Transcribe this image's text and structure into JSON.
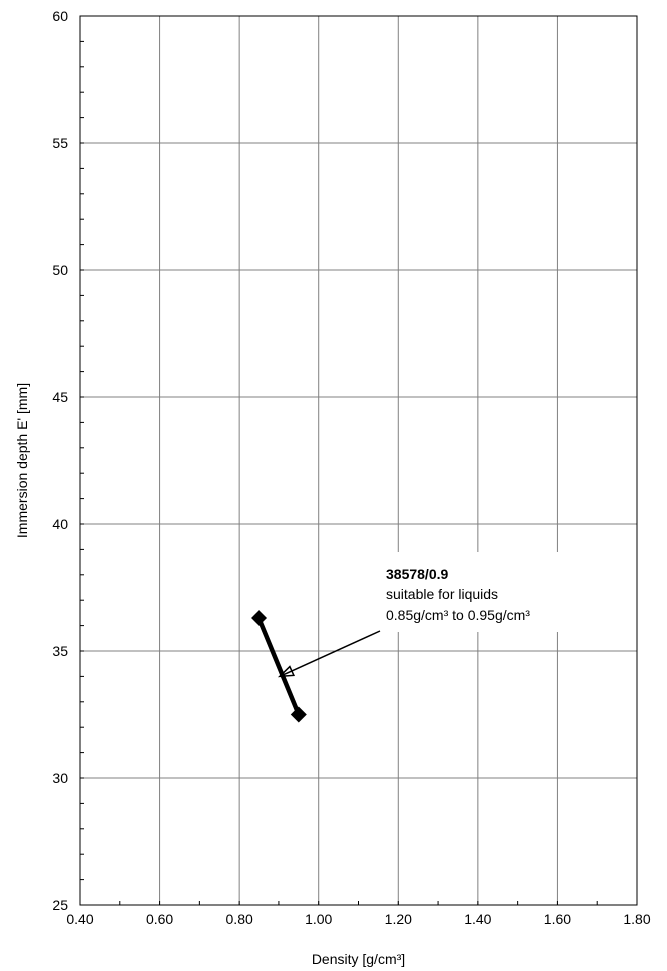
{
  "chart_data": {
    "type": "line",
    "xlabel": "Density [g/cm³]",
    "ylabel": "Immersion depth E' [mm]",
    "xlim": [
      0.4,
      1.8
    ],
    "ylim": [
      25,
      60
    ],
    "x_ticks": [
      "0.40",
      "0.60",
      "0.80",
      "1.00",
      "1.20",
      "1.40",
      "1.60",
      "1.80"
    ],
    "y_ticks": [
      "25",
      "30",
      "35",
      "40",
      "45",
      "50",
      "55",
      "60"
    ],
    "grid": true,
    "series": [
      {
        "name": "38578/0.9",
        "color": "#000000",
        "marker": "diamond",
        "points": [
          {
            "x": 0.85,
            "y": 36.3
          },
          {
            "x": 0.95,
            "y": 32.5
          }
        ]
      }
    ],
    "annotation": {
      "title": "38578/0.9",
      "line2": "suitable for liquids",
      "line3": "0.85g/cm³ to 0.95g/cm³",
      "arrow_target": {
        "x": 0.9,
        "y": 34.0
      }
    }
  }
}
